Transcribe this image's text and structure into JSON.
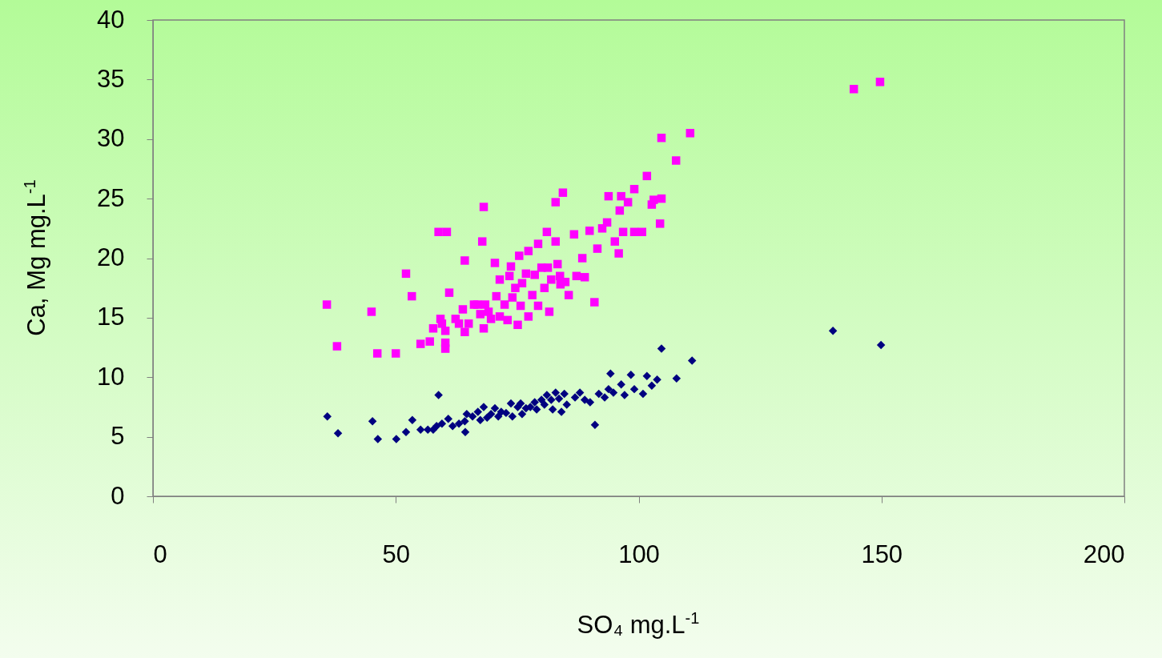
{
  "chart_data": {
    "type": "scatter",
    "xlabel": "SO₄ mg.L$^{-1}$",
    "ylabel": "Ca, Mg mg.L$^{-1}$",
    "xlim": [
      0,
      200
    ],
    "xticks": [
      0,
      50,
      100,
      150,
      200
    ],
    "ylim": [
      0,
      40
    ],
    "yticks": [
      0,
      5,
      10,
      15,
      20,
      25,
      30,
      35,
      40
    ],
    "grid": false,
    "legend": false,
    "series": [
      {
        "color": "#ff00ff",
        "marker": "square",
        "x": [
          35.8,
          37.9,
          45,
          46.2,
          50,
          52.1,
          53.3,
          55.1,
          57,
          57.7,
          58.8,
          60.5,
          59.2,
          59.5,
          60.2,
          60.2,
          60.2,
          61,
          62.3,
          63,
          63.8,
          64.2,
          64.2,
          65,
          66.1,
          66.8,
          67.4,
          68.1,
          67.8,
          68.1,
          68.4,
          69.1,
          69.6,
          70.4,
          70.7,
          71.4,
          71.4,
          72.4,
          73,
          73.4,
          73.7,
          74,
          74.6,
          75.1,
          75.4,
          75.7,
          76,
          76.8,
          77.3,
          77.3,
          78.1,
          78.6,
          79.3,
          79.3,
          80,
          80.6,
          81.1,
          81.3,
          81.6,
          82,
          82.9,
          82.9,
          83.3,
          83.8,
          83.9,
          84.4,
          84.9,
          85.6,
          86.7,
          87.2,
          88.4,
          88.9,
          89.9,
          90.9,
          91.5,
          92.5,
          93.5,
          93.8,
          95.1,
          95.9,
          96.1,
          96.4,
          96.8,
          97.8,
          99.1,
          99.1,
          100.7,
          101.7,
          102.7,
          103.1,
          104.4,
          104.7,
          104.7,
          107.7,
          110.6,
          144.3,
          149.7
        ],
        "values": [
          16.1,
          12.6,
          15.5,
          12,
          12,
          18.7,
          16.8,
          12.8,
          13,
          14.1,
          22.2,
          22.2,
          14.9,
          14.5,
          13.9,
          12.9,
          12.4,
          17.1,
          14.9,
          14.5,
          15.7,
          19.8,
          13.8,
          14.5,
          16.1,
          16.1,
          15.3,
          24.3,
          21.4,
          14.1,
          16.1,
          15.5,
          14.9,
          19.6,
          16.8,
          18.2,
          15.1,
          16.1,
          14.8,
          18.5,
          19.3,
          16.7,
          17.5,
          14.4,
          20.2,
          16,
          17.9,
          18.7,
          20.6,
          15.1,
          16.9,
          18.6,
          21.2,
          16,
          19.2,
          17.5,
          22.2,
          19.2,
          15.5,
          18.2,
          24.7,
          21.4,
          19.5,
          18.5,
          17.8,
          25.5,
          18,
          16.9,
          22,
          18.5,
          20,
          18.4,
          22.3,
          16.3,
          20.8,
          22.5,
          23,
          25.2,
          21.4,
          20.4,
          24,
          25.2,
          22.2,
          24.7,
          25.8,
          22.2,
          22.2,
          26.9,
          24.5,
          24.9,
          22.9,
          25,
          30.1,
          28.2,
          30.5,
          34.2,
          34.8
        ]
      },
      {
        "color": "#000080",
        "marker": "diamond",
        "x": [
          35.9,
          38.1,
          45.2,
          46.3,
          50.1,
          52.1,
          53.4,
          55.1,
          56.6,
          57.7,
          58.8,
          58.4,
          59.5,
          60.8,
          61.7,
          63,
          64.2,
          64.3,
          64.6,
          65.8,
          66.9,
          67.4,
          68.1,
          68.8,
          69.6,
          70.4,
          71.1,
          71.7,
          72.7,
          73.7,
          74,
          75.1,
          75.7,
          76,
          76.8,
          77.7,
          78.6,
          79,
          80,
          80.6,
          81.1,
          82,
          82.3,
          82.9,
          83.6,
          84.1,
          84.7,
          85.2,
          86.9,
          87.9,
          88.9,
          90,
          91,
          91.8,
          93,
          94.2,
          93.8,
          94.8,
          96.4,
          97.1,
          98.4,
          99.1,
          100.9,
          101.7,
          102.7,
          103.8,
          104.7,
          107.8,
          111,
          140,
          149.9
        ],
        "values": [
          6.7,
          5.3,
          6.3,
          4.8,
          4.8,
          5.4,
          6.4,
          5.6,
          5.6,
          5.6,
          8.5,
          5.9,
          6.1,
          6.5,
          5.9,
          6.1,
          6.3,
          5.4,
          6.9,
          6.7,
          7.1,
          6.4,
          7.5,
          6.6,
          6.9,
          7.4,
          6.7,
          7.1,
          7,
          7.8,
          6.7,
          7.5,
          7.8,
          6.9,
          7.4,
          7.5,
          7.9,
          7.3,
          8.1,
          7.7,
          8.5,
          8.1,
          7.3,
          8.7,
          8.2,
          7.1,
          8.6,
          7.7,
          8.3,
          8.7,
          8.1,
          7.9,
          6,
          8.6,
          8.3,
          10.3,
          9,
          8.7,
          9.4,
          8.5,
          10.2,
          9,
          8.6,
          10.1,
          9.3,
          9.8,
          12.4,
          9.9,
          11.4,
          13.9,
          12.7
        ]
      }
    ]
  }
}
